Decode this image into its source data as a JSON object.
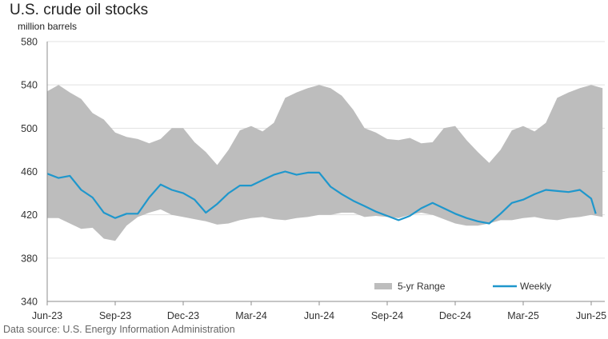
{
  "title": "U.S. crude oil stocks",
  "unit_label": "million barrels",
  "source": "Data source: U.S. Energy Information Administration",
  "colors": {
    "range": "#bdbdbd",
    "weekly": "#1f97cc",
    "axis": "#8c8c8c",
    "grid": "#e1e1e1"
  },
  "chart_data": {
    "type": "area",
    "ylim": [
      340,
      580
    ],
    "y_ticks": [
      "580",
      "540",
      "500",
      "460",
      "420",
      "380",
      "340"
    ],
    "x_ticks": [
      "Jun-23",
      "Sep-23",
      "Dec-23",
      "Mar-24",
      "Jun-24",
      "Sep-24",
      "Dec-24",
      "Mar-25",
      "Jun-25"
    ],
    "x_tick_months": [
      0,
      3,
      6,
      9,
      12,
      15,
      18,
      21,
      24
    ],
    "grid": true,
    "legend_position": "bottom-right",
    "legend": [
      "5-yr Range",
      "Weekly"
    ],
    "range": {
      "name": "5-yr Range",
      "x_months": [
        0,
        0.5,
        1,
        1.5,
        2,
        2.5,
        3,
        3.5,
        4,
        4.5,
        5,
        5.5,
        6,
        6.5,
        7,
        7.5,
        8,
        8.5,
        9,
        9.5,
        10,
        10.5,
        11,
        11.5,
        12,
        12.5,
        13,
        13.5,
        14,
        14.5,
        15,
        15.5,
        16,
        16.5,
        17,
        17.5,
        18,
        18.5,
        19,
        19.5,
        20,
        20.5,
        21,
        21.5,
        22,
        22.5,
        23,
        23.5,
        24,
        24.5
      ],
      "upper": [
        534,
        540,
        533,
        527,
        514,
        508,
        496,
        492,
        490,
        486,
        490,
        500,
        500,
        487,
        478,
        466,
        480,
        498,
        502,
        497,
        505,
        528,
        533,
        537,
        540,
        537,
        530,
        517,
        500,
        496,
        490,
        489,
        491,
        486,
        487,
        500,
        502,
        489,
        478,
        468,
        480,
        498,
        502,
        497,
        505,
        528,
        533,
        537,
        540,
        537
      ],
      "lower": [
        417,
        417,
        412,
        407,
        408,
        398,
        396,
        410,
        418,
        422,
        425,
        420,
        418,
        416,
        414,
        411,
        412,
        415,
        417,
        418,
        416,
        415,
        417,
        418,
        420,
        420,
        422,
        422,
        418,
        419,
        418,
        417,
        420,
        422,
        420,
        416,
        412,
        410,
        410,
        412,
        415,
        415,
        417,
        418,
        416,
        415,
        417,
        418,
        420,
        418
      ]
    },
    "series": [
      {
        "name": "Weekly",
        "x_months": [
          0,
          0.5,
          1,
          1.5,
          2,
          2.5,
          3,
          3.5,
          4,
          4.5,
          5,
          5.5,
          6,
          6.5,
          7,
          7.5,
          8,
          8.5,
          9,
          9.5,
          10,
          10.5,
          11,
          11.5,
          12,
          12.5,
          13,
          13.5,
          14,
          14.5,
          15,
          15.5,
          16,
          16.5,
          17,
          17.5,
          18,
          18.5,
          19,
          19.5,
          20,
          20.5,
          21,
          21.5,
          22,
          22.5,
          23,
          23.5,
          24,
          24.2
        ],
        "values": [
          458,
          454,
          456,
          443,
          436,
          422,
          417,
          421,
          421,
          436,
          448,
          443,
          440,
          434,
          422,
          430,
          440,
          447,
          447,
          452,
          457,
          460,
          457,
          459,
          459,
          446,
          439,
          433,
          428,
          423,
          419,
          415,
          419,
          426,
          431,
          426,
          421,
          417,
          414,
          412,
          421,
          431,
          434,
          439,
          443,
          442,
          441,
          443,
          435,
          421
        ]
      }
    ]
  }
}
